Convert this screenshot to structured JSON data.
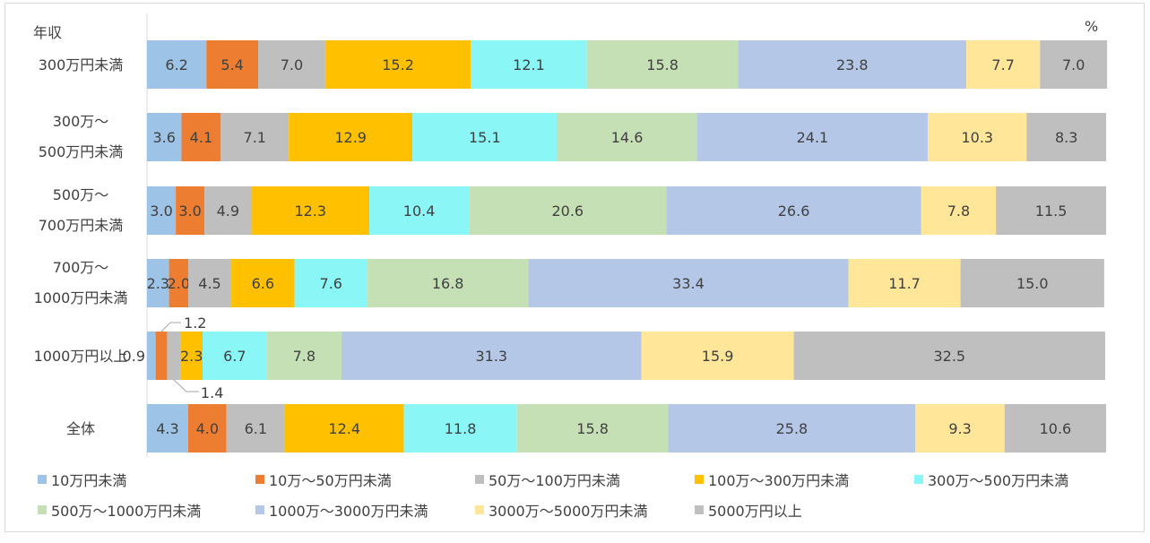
{
  "chart_data": {
    "type": "bar",
    "orientation": "horizontal-stacked-100",
    "y_title": "年収",
    "unit_label": "%",
    "categories": [
      "300万円未満",
      "300万～\n500万円未満",
      "500万～\n700万円未満",
      "700万～\n1000万円未満",
      "1000万円以上",
      "全体"
    ],
    "series": [
      {
        "name": "10万円未満",
        "color": "#9DC3E6",
        "values": [
          6.2,
          3.6,
          3.0,
          2.3,
          0.9,
          4.3
        ]
      },
      {
        "name": "10万～50万円未満",
        "color": "#ED7D31",
        "values": [
          5.4,
          4.1,
          3.0,
          2.0,
          1.2,
          4.0
        ]
      },
      {
        "name": "50万～100万円未満",
        "color": "#BFBFBF",
        "values": [
          7.0,
          7.1,
          4.9,
          4.5,
          1.4,
          6.1
        ]
      },
      {
        "name": "100万～300万円未満",
        "color": "#FFC000",
        "values": [
          15.2,
          12.9,
          12.3,
          6.6,
          2.3,
          12.4
        ]
      },
      {
        "name": "300万～500万円未満",
        "color": "#8AF6F6",
        "values": [
          12.1,
          15.1,
          10.4,
          7.6,
          6.7,
          11.8
        ]
      },
      {
        "name": "500万～1000万円未満",
        "color": "#C5E0B4",
        "values": [
          15.8,
          14.6,
          20.6,
          16.8,
          7.8,
          15.8
        ]
      },
      {
        "name": "1000万～3000万円未満",
        "color": "#B4C7E7",
        "values": [
          23.8,
          24.1,
          26.6,
          33.4,
          31.3,
          25.8
        ]
      },
      {
        "name": "3000万～5000万円未満",
        "color": "#FFE699",
        "values": [
          7.7,
          10.3,
          7.8,
          11.7,
          15.9,
          9.3
        ]
      },
      {
        "name": "5000万円以上",
        "color": "#BFBFBF",
        "values": [
          7.0,
          8.3,
          11.5,
          15.0,
          32.5,
          10.6
        ]
      }
    ],
    "xlim": [
      0,
      100
    ],
    "legend": "bottom"
  }
}
